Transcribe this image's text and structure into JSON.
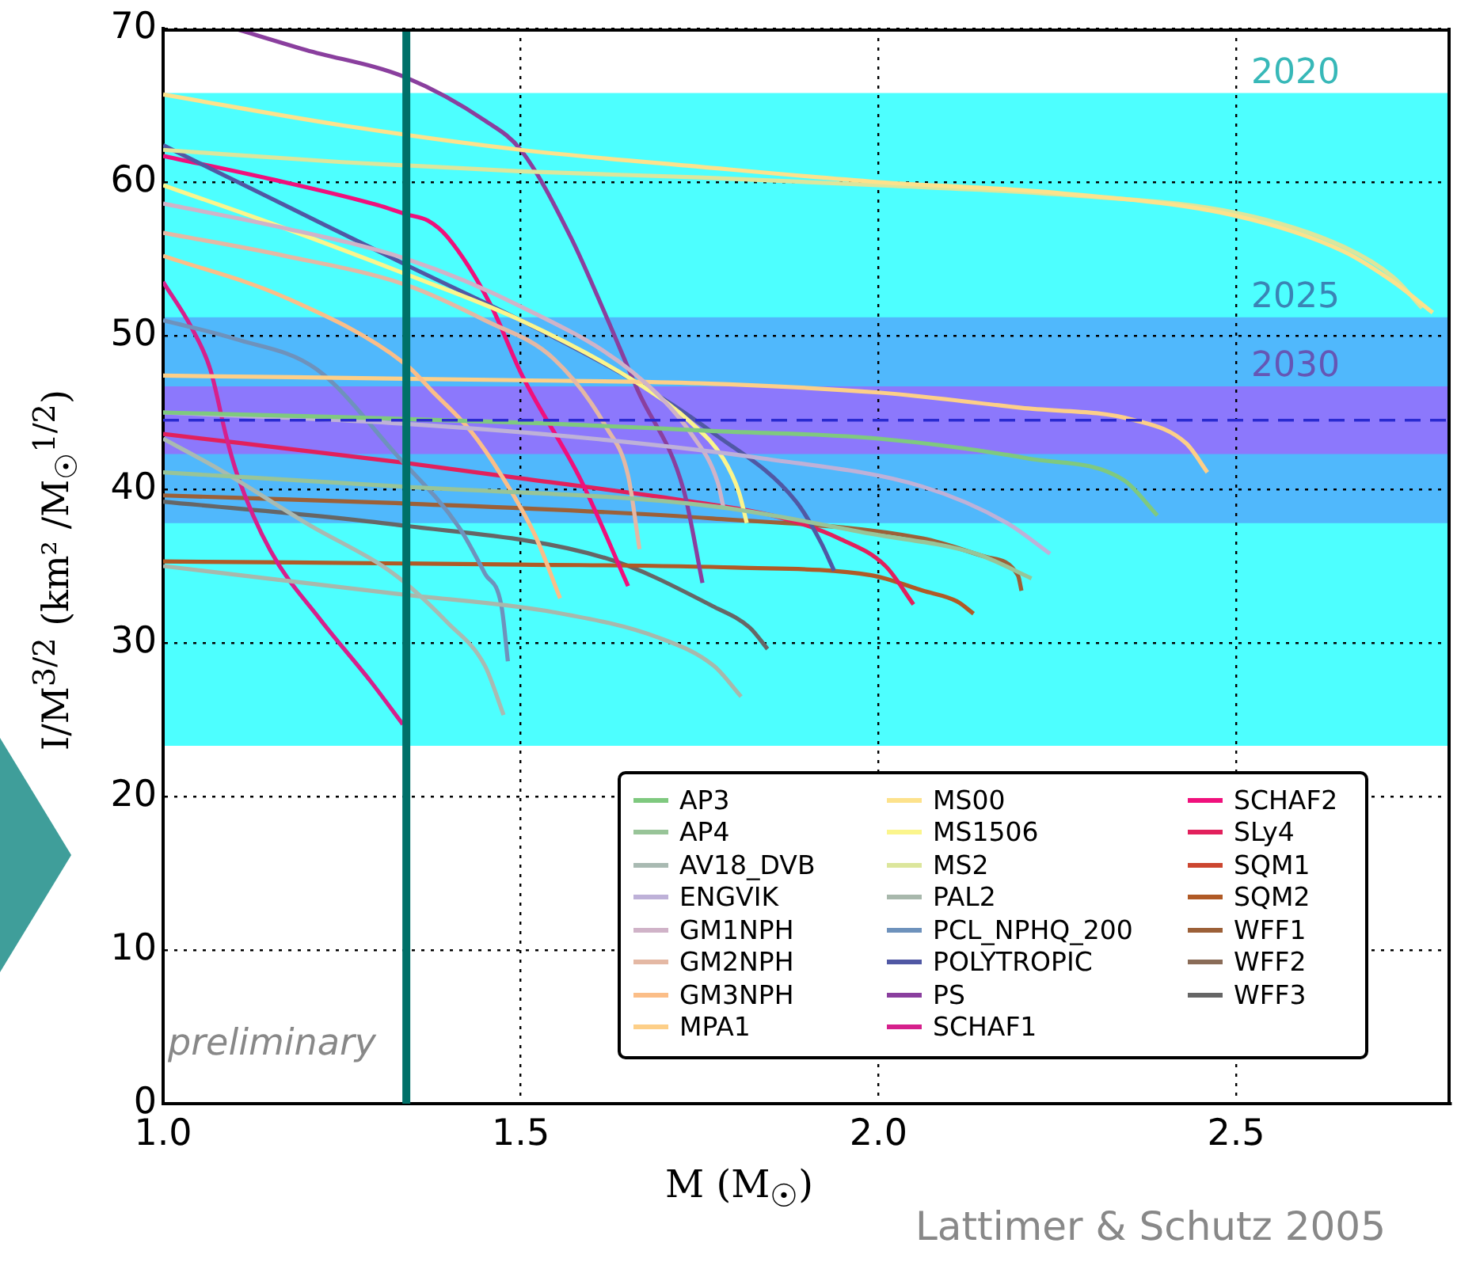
{
  "chart_data": {
    "type": "line",
    "xlabel": "M (M$_{☉}$)",
    "ylabel": "I/M$^{3/2}$  (km² /M$_{☉}$$^{1/2}$)",
    "xlim": [
      1.0,
      2.8
    ],
    "xticks": [
      {
        "value": 1.0,
        "label": "1.0"
      },
      1.5,
      {
        "value": 2.0,
        "label": "2.0"
      },
      2.5
    ],
    "ylim": [
      0,
      70
    ],
    "yticks": [
      0,
      10,
      20,
      30,
      40,
      50,
      60,
      70
    ],
    "grid": true,
    "legend": "bottom right",
    "marker": "none",
    "line_style": "solid",
    "bands": [
      {
        "axis": "y",
        "from": 23.3,
        "to": 65.8,
        "label": "2020",
        "color": "#4dffff"
      },
      {
        "axis": "y",
        "from": 37.8,
        "to": 51.2,
        "label": "2025",
        "color": "#50b8fc"
      },
      {
        "axis": "y",
        "from": 42.3,
        "to": 46.7,
        "label": "2030",
        "color": "#8c78fc"
      }
    ],
    "ref_lines": [
      {
        "axis": "y",
        "value": 44.5,
        "color": "#2a2ad0",
        "line_style": "dashed"
      },
      {
        "axis": "x",
        "value": 1.34,
        "color": "#007068",
        "line_style": "solid"
      }
    ],
    "annotations": [
      "preliminary",
      "Lattimer & Schutz 2005"
    ],
    "series": [
      {
        "name": "AP3",
        "color": "#7fc97f",
        "x": [
          1.0,
          1.25,
          1.53,
          1.768,
          2.0,
          2.21,
          2.343,
          2.39
        ],
        "values": [
          45.0,
          44.7,
          44.3,
          43.8,
          43.3,
          42.0,
          40.6,
          38.3
        ]
      },
      {
        "name": "AP4",
        "color": "#98c498",
        "x": [
          1.0,
          1.325,
          1.768,
          1.99,
          2.137,
          2.214
        ],
        "values": [
          41.1,
          40.2,
          38.9,
          37.1,
          35.8,
          34.2
        ]
      },
      {
        "name": "AV18_DVB",
        "color": "#a9bab2",
        "x": [
          1.0,
          1.082,
          1.2,
          1.325,
          1.398,
          1.45,
          1.476
        ],
        "values": [
          43.3,
          41.2,
          37.8,
          34.4,
          31.3,
          28.5,
          25.3
        ]
      },
      {
        "name": "ENGVIK",
        "color": "#beb1d8",
        "x": [
          1.0,
          1.325,
          1.6,
          1.84,
          2.06,
          2.18,
          2.24
        ],
        "values": [
          45.0,
          44.3,
          43.3,
          42.0,
          40.2,
          37.8,
          35.8
        ]
      },
      {
        "name": "GM1NPH",
        "color": "#d0b3c8",
        "x": [
          1.0,
          1.17,
          1.34,
          1.5,
          1.657,
          1.74,
          1.775,
          1.783
        ],
        "values": [
          58.6,
          57.0,
          55.0,
          51.9,
          47.6,
          43.5,
          40.5,
          38.9
        ]
      },
      {
        "name": "GM2NPH",
        "color": "#e4b8a4",
        "x": [
          1.0,
          1.17,
          1.34,
          1.45,
          1.546,
          1.62,
          1.65,
          1.666
        ],
        "values": [
          56.7,
          55.2,
          53.3,
          51.0,
          48.5,
          44.0,
          40.9,
          36.1
        ]
      },
      {
        "name": "GM3NPH",
        "color": "#fbbe88",
        "x": [
          1.0,
          1.17,
          1.34,
          1.376,
          1.43,
          1.473,
          1.52,
          1.555
        ],
        "values": [
          55.2,
          52.5,
          48.1,
          46.4,
          43.8,
          40.9,
          37.0,
          32.9
        ]
      },
      {
        "name": "MPA1",
        "color": "#fdcf88",
        "x": [
          1.0,
          1.5,
          1.75,
          2.0,
          2.2,
          2.358,
          2.43,
          2.46
        ],
        "values": [
          47.4,
          47.1,
          46.9,
          46.3,
          45.3,
          44.5,
          43.0,
          41.1
        ]
      },
      {
        "name": "MS00",
        "color": "#fde28c",
        "x": [
          1.0,
          1.25,
          1.5,
          1.75,
          2.0,
          2.25,
          2.5,
          2.65,
          2.72,
          2.775
        ],
        "values": [
          65.7,
          63.7,
          62.1,
          61.0,
          60.0,
          59.3,
          57.8,
          55.5,
          53.5,
          51.5
        ]
      },
      {
        "name": "MS1506",
        "color": "#fbf58c",
        "x": [
          1.0,
          1.17,
          1.34,
          1.5,
          1.657,
          1.739,
          1.783,
          1.805,
          1.816
        ],
        "values": [
          59.8,
          57.0,
          54.0,
          51.0,
          47.1,
          44.3,
          42.0,
          39.8,
          37.8
        ]
      },
      {
        "name": "MS2",
        "color": "#dce69c",
        "x": [
          1.0,
          1.25,
          1.5,
          1.75,
          2.0,
          2.25,
          2.5,
          2.65,
          2.72,
          2.76
        ],
        "values": [
          62.1,
          61.3,
          60.7,
          60.3,
          59.8,
          59.2,
          58.0,
          55.8,
          53.8,
          51.8
        ]
      },
      {
        "name": "PAL2",
        "color": "#a8b8ac",
        "x": [
          1.0,
          1.325,
          1.546,
          1.695,
          1.77,
          1.808
        ],
        "values": [
          35.0,
          33.2,
          32.0,
          30.3,
          28.5,
          26.5
        ]
      },
      {
        "name": "PCL_NPHQ_200",
        "color": "#6e92bc",
        "x": [
          1.0,
          1.1,
          1.215,
          1.325,
          1.414,
          1.45,
          1.473,
          1.482
        ],
        "values": [
          51.0,
          49.8,
          47.8,
          42.3,
          37.5,
          34.5,
          32.4,
          28.8
        ]
      },
      {
        "name": "POLYTROPIC",
        "color": "#5058a4",
        "x": [
          1.0,
          1.17,
          1.34,
          1.5,
          1.657,
          1.768,
          1.885,
          1.92,
          1.938
        ],
        "values": [
          62.4,
          58.5,
          54.6,
          51.0,
          47.1,
          43.7,
          39.2,
          36.5,
          34.7
        ]
      },
      {
        "name": "PS",
        "color": "#8a3f9e",
        "x": [
          1.1,
          1.2,
          1.34,
          1.45,
          1.5,
          1.57,
          1.62,
          1.664,
          1.728,
          1.754
        ],
        "values": [
          70.0,
          68.6,
          66.8,
          64.0,
          62.1,
          56.4,
          51.2,
          46.4,
          39.9,
          33.9
        ]
      },
      {
        "name": "SCHAF1",
        "color": "#d6208c",
        "x": [
          1.0,
          1.04,
          1.066,
          1.089,
          1.104,
          1.15,
          1.22,
          1.29,
          1.335
        ],
        "values": [
          53.5,
          50.5,
          47.8,
          43.3,
          40.9,
          36.0,
          31.5,
          27.5,
          24.7
        ]
      },
      {
        "name": "SCHAF2",
        "color": "#f0107c",
        "x": [
          1.0,
          1.15,
          1.3,
          1.34,
          1.37,
          1.398,
          1.458,
          1.502,
          1.584,
          1.65
        ],
        "values": [
          61.7,
          60.2,
          58.5,
          57.9,
          57.5,
          56.4,
          52.0,
          47.4,
          40.6,
          33.7
        ]
      },
      {
        "name": "SLy4",
        "color": "#e2205c",
        "x": [
          1.0,
          1.325,
          1.502,
          1.739,
          1.86,
          1.945,
          2.01,
          2.049
        ],
        "values": [
          43.6,
          41.8,
          40.7,
          39.2,
          38.2,
          36.8,
          35.0,
          32.5
        ]
      },
      {
        "name": "SQM1",
        "color": "#cc4630"
      },
      {
        "name": "SQM2",
        "color": "#b05a26",
        "x": [
          1.0,
          1.5,
          1.8,
          1.99,
          2.062,
          2.11,
          2.133
        ],
        "values": [
          35.3,
          35.1,
          34.9,
          34.4,
          33.4,
          32.7,
          31.9
        ]
      },
      {
        "name": "WFF1",
        "color": "#9c6038",
        "x": [
          1.0,
          1.325,
          1.768,
          2.062,
          2.15,
          2.195,
          2.2
        ],
        "values": [
          39.6,
          39.1,
          38.1,
          36.8,
          35.6,
          34.4,
          33.4
        ]
      },
      {
        "name": "WFF2",
        "color": "#8a6c58"
      },
      {
        "name": "WFF3",
        "color": "#666666",
        "x": [
          1.0,
          1.325,
          1.62,
          1.768,
          1.82,
          1.845
        ],
        "values": [
          39.2,
          37.7,
          35.5,
          32.4,
          31.0,
          29.6
        ]
      }
    ]
  }
}
